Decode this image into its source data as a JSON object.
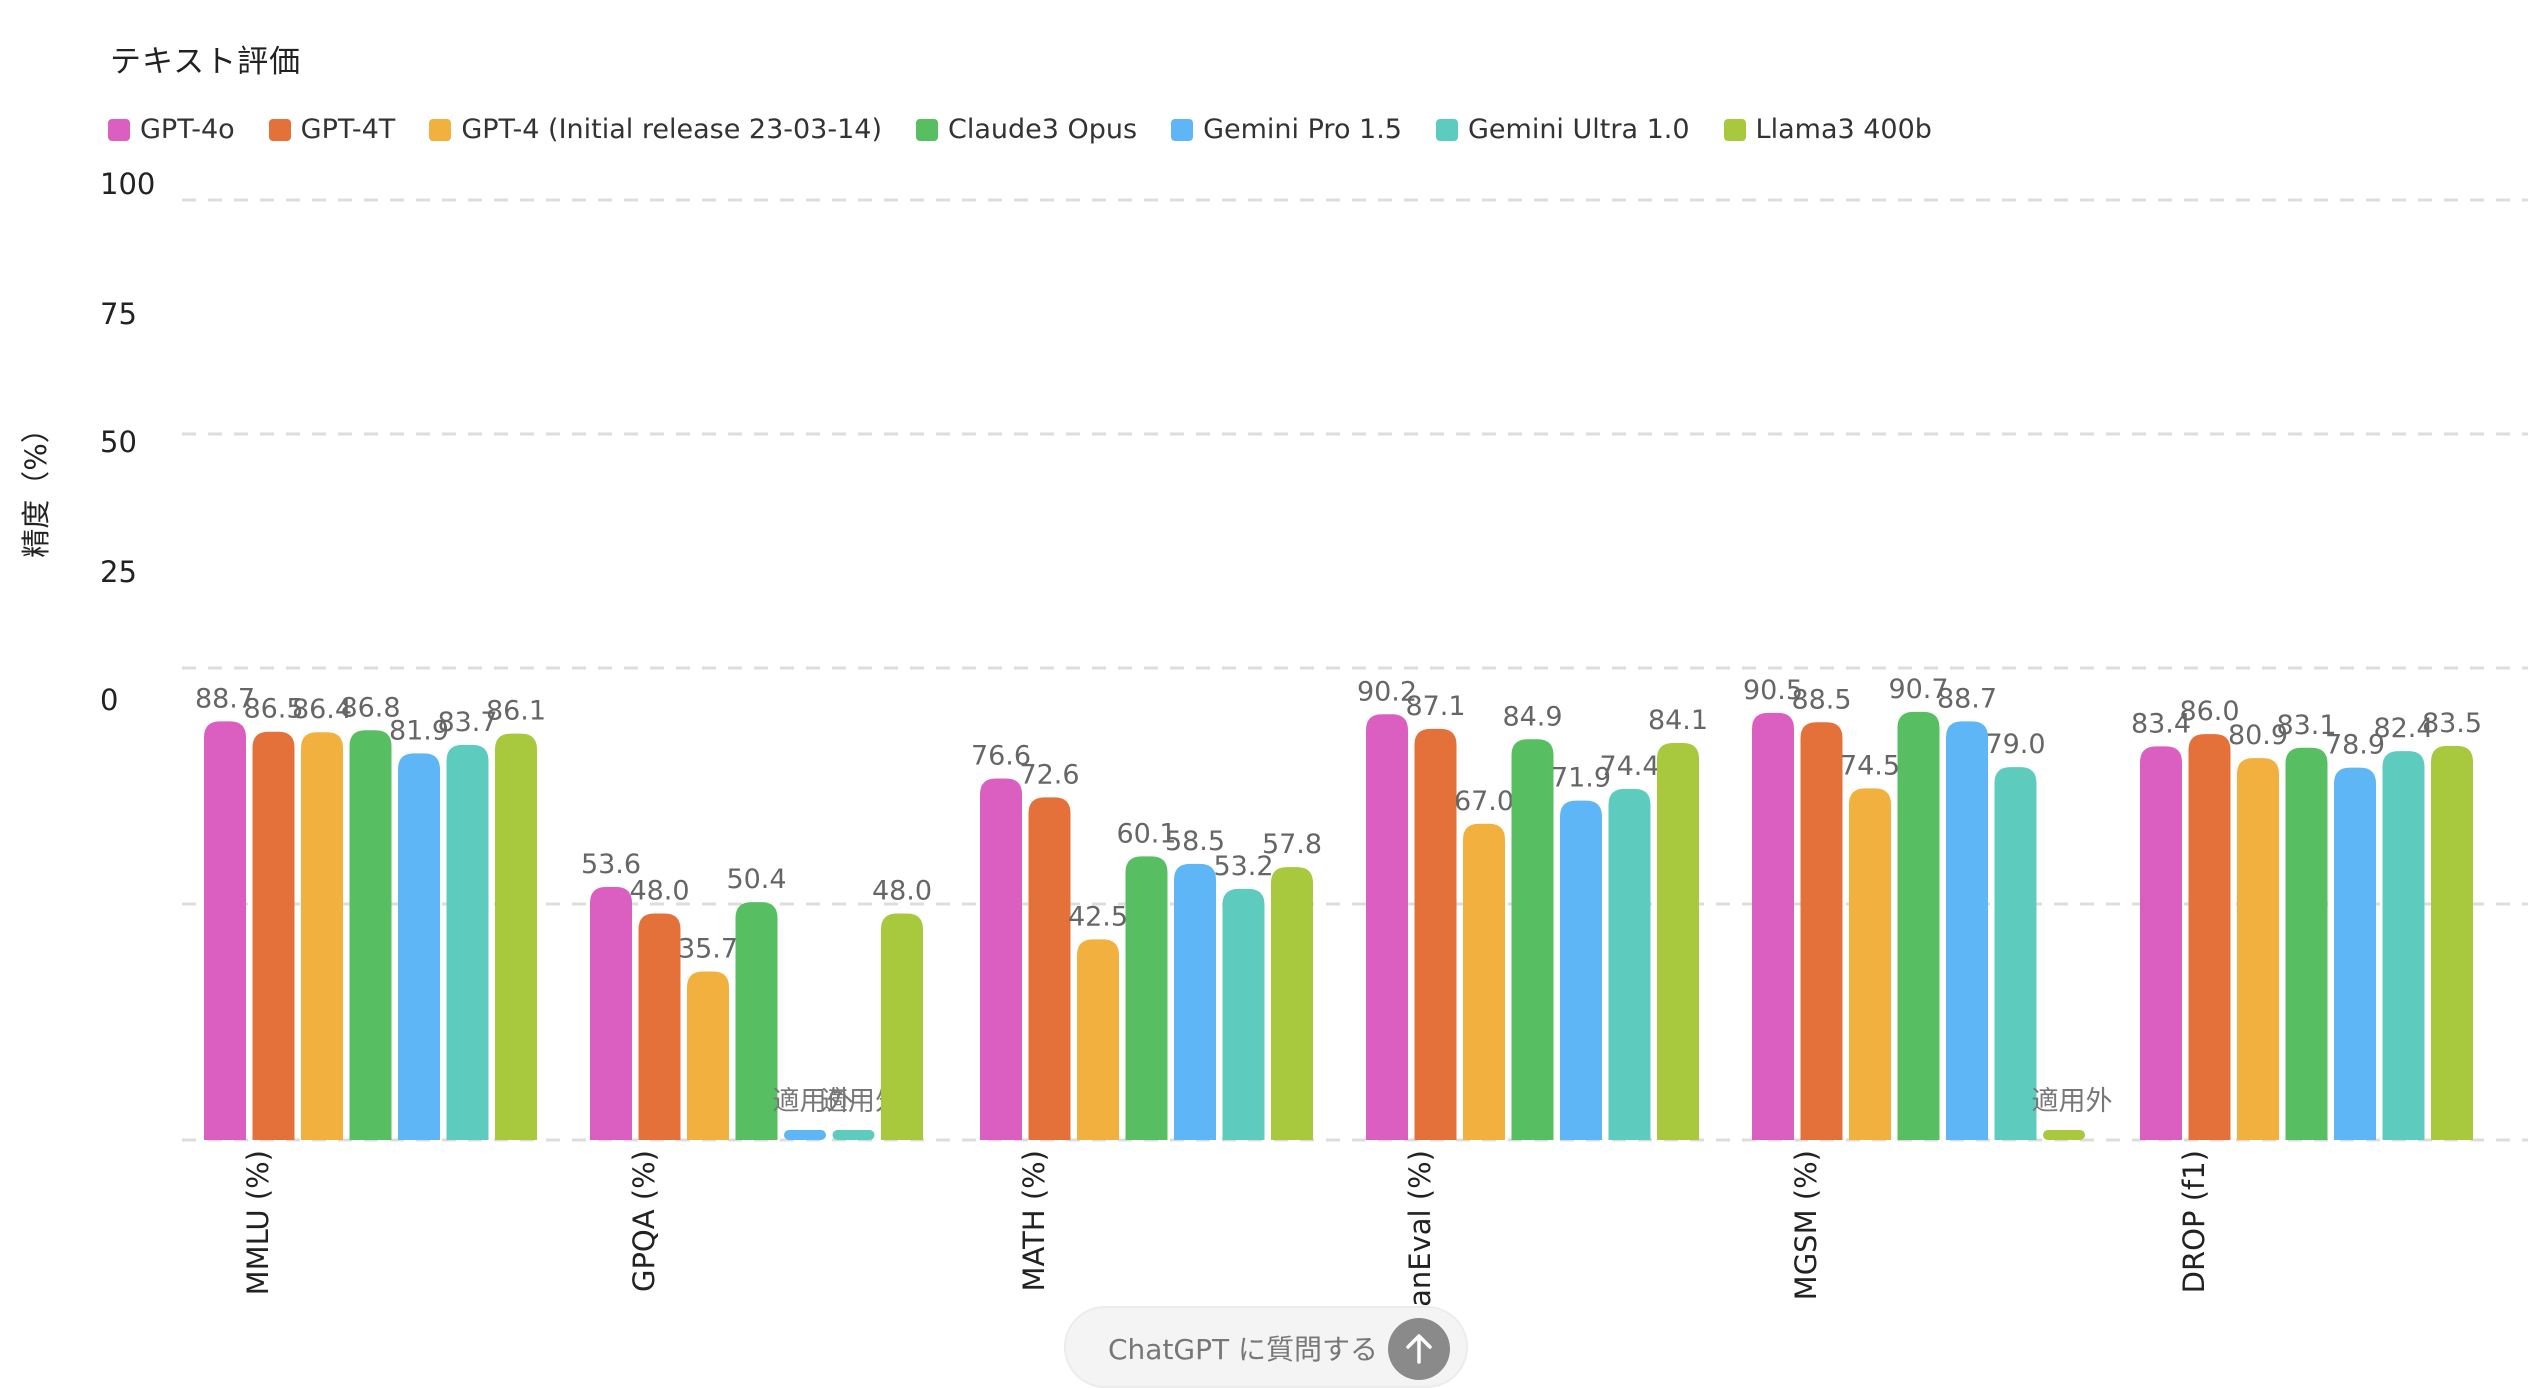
{
  "chart_data": {
    "type": "bar",
    "title": "テキスト評価",
    "ylabel": "精度（%）",
    "xlabel": "",
    "ylim": [
      0,
      100
    ],
    "y_ticks": [
      "100",
      "75",
      "50",
      "25",
      "0"
    ],
    "grid": true,
    "legend_position": "top-left",
    "categories": [
      "MMLU (%)",
      "GPQA (%)",
      "MATH (%)",
      "HumanEval (%)",
      "MGSM (%)",
      "DROP (f1)"
    ],
    "na_label": "適用外",
    "series": [
      {
        "name": "GPT-4o",
        "color": "#DB5FC0",
        "values": [
          88.7,
          53.6,
          76.6,
          90.2,
          90.5,
          83.4
        ]
      },
      {
        "name": "GPT-4T",
        "color": "#E4703A",
        "values": [
          86.5,
          48.0,
          72.6,
          87.1,
          88.5,
          86.0
        ]
      },
      {
        "name": "GPT-4 (Initial release 23-03-14)",
        "color": "#F2B13F",
        "values": [
          86.4,
          35.7,
          42.5,
          67.0,
          74.5,
          80.9
        ]
      },
      {
        "name": "Claude3 Opus",
        "color": "#57BE62",
        "values": [
          86.8,
          50.4,
          60.1,
          84.9,
          90.7,
          83.1
        ]
      },
      {
        "name": "Gemini Pro 1.5",
        "color": "#5FB6F6",
        "values": [
          81.9,
          null,
          58.5,
          71.9,
          88.7,
          78.9
        ]
      },
      {
        "name": "Gemini Ultra 1.0",
        "color": "#5ECBBF",
        "values": [
          83.7,
          null,
          53.2,
          74.4,
          79.0,
          82.4
        ]
      },
      {
        "name": "Llama3 400b",
        "color": "#A8C83E",
        "values": [
          86.1,
          48.0,
          57.8,
          84.1,
          null,
          83.5
        ]
      }
    ]
  },
  "chat_prompt": {
    "label": "ChatGPT に質問する",
    "send_icon": "arrow-up-icon"
  }
}
